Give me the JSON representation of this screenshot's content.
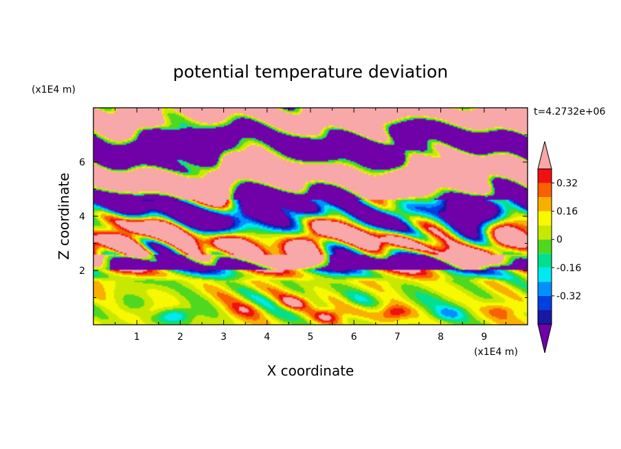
{
  "chart_data": {
    "type": "heatmap",
    "title": "potential temperature deviation",
    "xlabel": "X coordinate",
    "ylabel": "Z coordinate",
    "x_unit": "(x1E4 m)",
    "y_unit": "(x1E4 m)",
    "time_label": "t=4.2732e+06",
    "xlim": [
      0,
      10
    ],
    "ylim": [
      0,
      8
    ],
    "x_ticks": [
      "1",
      "2",
      "3",
      "4",
      "5",
      "6",
      "7",
      "8",
      "9"
    ],
    "y_ticks": [
      "2",
      "4",
      "6"
    ],
    "colorbar": {
      "levels": [
        -0.48,
        -0.4,
        -0.32,
        -0.24,
        -0.16,
        -0.08,
        0,
        0.08,
        0.16,
        0.24,
        0.32,
        0.4,
        0.48
      ],
      "colors": [
        "#7000a8",
        "#1818a0",
        "#0040e0",
        "#0090ff",
        "#00e8f0",
        "#00e090",
        "#50d820",
        "#c8e800",
        "#f8f800",
        "#f8b000",
        "#f86000",
        "#f01010",
        "#f8a8a8"
      ],
      "tick_labels": [
        "-0.32",
        "-0.16",
        "0",
        "0.16",
        "0.32"
      ],
      "tick_values": [
        -0.32,
        -0.16,
        0,
        0.16,
        0.32
      ],
      "extend": "both"
    }
  }
}
